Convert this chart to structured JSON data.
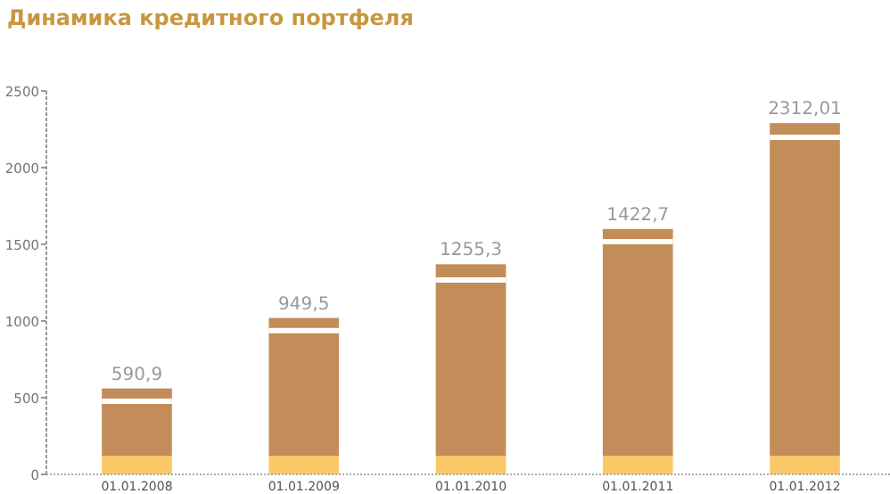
{
  "chart_data": {
    "type": "bar",
    "title": "Динамика кредитного портфеля",
    "categories": [
      "01.01.2008",
      "01.01.2009",
      "01.01.2010",
      "01.01.2011",
      "01.01.2012"
    ],
    "stacked": true,
    "series": [
      {
        "color": "#fcc865",
        "values": [
          120,
          120,
          120,
          120,
          120
        ]
      },
      {
        "color": "#c28d58",
        "values": [
          340,
          800,
          1130,
          1380,
          2060
        ]
      },
      {
        "color": "#c28d58",
        "values": [
          100,
          100,
          120,
          100,
          110
        ]
      }
    ],
    "annotations": [
      {
        "text": "590,9",
        "x": "01.01.2008",
        "y": 560
      },
      {
        "text": "949,5",
        "x": "01.01.2009",
        "y": 1020
      },
      {
        "text": "1255,3",
        "x": "01.01.2010",
        "y": 1370
      },
      {
        "text": "1422,7",
        "x": "01.01.2011",
        "y": 1600
      },
      {
        "text": "2312,01",
        "x": "01.01.2012",
        "y": 2290
      }
    ],
    "ylim": [
      0,
      2500
    ],
    "yticks": [
      0,
      500,
      1000,
      1500,
      2000,
      2500
    ],
    "grid": false
  }
}
